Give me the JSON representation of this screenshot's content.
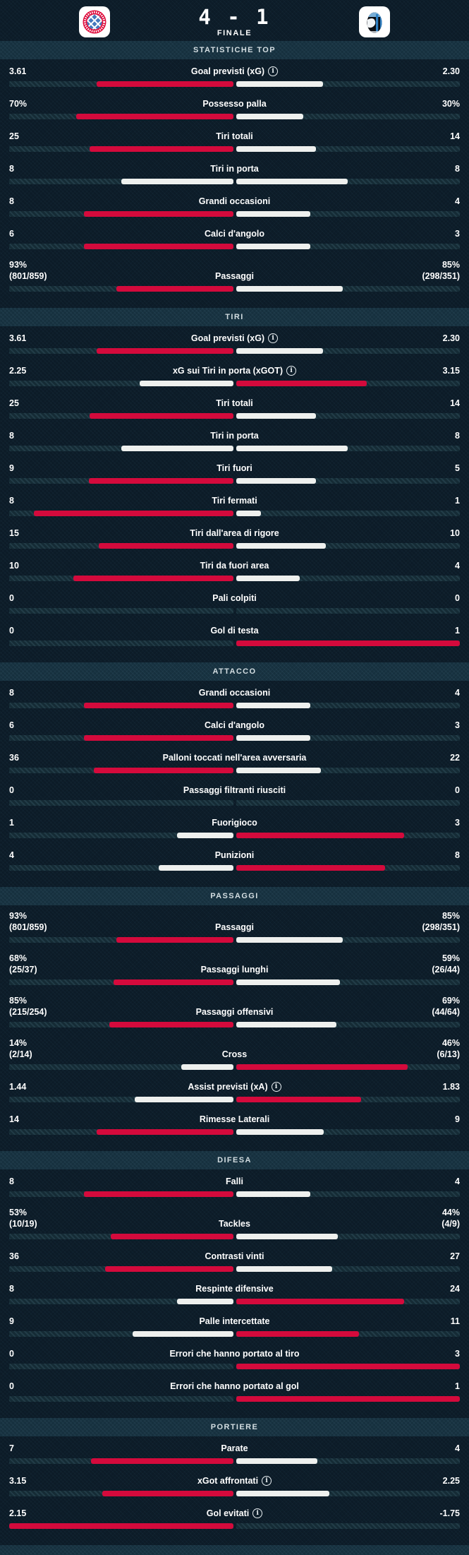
{
  "header": {
    "score": "4 - 1",
    "status": "FINALE",
    "home_logo": "bayern-munich-crest",
    "away_logo": "atalanta-crest"
  },
  "colors": {
    "background": "#0c1b27",
    "band": "#16303e",
    "track": "#152b35",
    "accent_red": "#d40a3c",
    "bar_neutral": "#eef0ee"
  },
  "icons": {
    "info": "info-icon"
  },
  "sections": [
    {
      "title": "STATISTICHE TOP",
      "rows": [
        {
          "label": "Goal previsti (xG)",
          "info": true,
          "left": "3.61",
          "right": "2.30",
          "bars": {
            "left_pct": 61.1,
            "left_color": "red",
            "right_pct": 38.9,
            "right_color": "white"
          }
        },
        {
          "label": "Possesso palla",
          "info": false,
          "left": "70%",
          "right": "30%",
          "bars": {
            "left_pct": 70,
            "left_color": "red",
            "right_pct": 30,
            "right_color": "white"
          }
        },
        {
          "label": "Tiri totali",
          "info": false,
          "left": "25",
          "right": "14",
          "bars": {
            "left_pct": 64.1,
            "left_color": "red",
            "right_pct": 35.9,
            "right_color": "white"
          }
        },
        {
          "label": "Tiri in porta",
          "info": false,
          "left": "8",
          "right": "8",
          "bars": {
            "left_pct": 50,
            "left_color": "white",
            "right_pct": 50,
            "right_color": "white"
          }
        },
        {
          "label": "Grandi occasioni",
          "info": false,
          "left": "8",
          "right": "4",
          "bars": {
            "left_pct": 66.7,
            "left_color": "red",
            "right_pct": 33.3,
            "right_color": "white"
          }
        },
        {
          "label": "Calci d'angolo",
          "info": false,
          "left": "6",
          "right": "3",
          "bars": {
            "left_pct": 66.7,
            "left_color": "red",
            "right_pct": 33.3,
            "right_color": "white"
          }
        },
        {
          "label": "Passaggi",
          "info": false,
          "left": "93%",
          "left_sub": "(801/859)",
          "right": "85%",
          "right_sub": "(298/351)",
          "bars": {
            "left_pct": 52.2,
            "left_color": "red",
            "right_pct": 47.8,
            "right_color": "white"
          }
        }
      ]
    },
    {
      "title": "TIRI",
      "rows": [
        {
          "label": "Goal previsti (xG)",
          "info": true,
          "left": "3.61",
          "right": "2.30",
          "bars": {
            "left_pct": 61.1,
            "left_color": "red",
            "right_pct": 38.9,
            "right_color": "white"
          }
        },
        {
          "label": "xG sui Tiri in porta (xGOT)",
          "info": true,
          "left": "2.25",
          "right": "3.15",
          "bars": {
            "left_pct": 41.7,
            "left_color": "white",
            "right_pct": 58.3,
            "right_color": "red"
          }
        },
        {
          "label": "Tiri totali",
          "info": false,
          "left": "25",
          "right": "14",
          "bars": {
            "left_pct": 64.1,
            "left_color": "red",
            "right_pct": 35.9,
            "right_color": "white"
          }
        },
        {
          "label": "Tiri in porta",
          "info": false,
          "left": "8",
          "right": "8",
          "bars": {
            "left_pct": 50,
            "left_color": "white",
            "right_pct": 50,
            "right_color": "white"
          }
        },
        {
          "label": "Tiri fuori",
          "info": false,
          "left": "9",
          "right": "5",
          "bars": {
            "left_pct": 64.3,
            "left_color": "red",
            "right_pct": 35.7,
            "right_color": "white"
          }
        },
        {
          "label": "Tiri fermati",
          "info": false,
          "left": "8",
          "right": "1",
          "bars": {
            "left_pct": 88.9,
            "left_color": "red",
            "right_pct": 11.1,
            "right_color": "white"
          }
        },
        {
          "label": "Tiri dall'area di rigore",
          "info": false,
          "left": "15",
          "right": "10",
          "bars": {
            "left_pct": 60,
            "left_color": "red",
            "right_pct": 40,
            "right_color": "white"
          }
        },
        {
          "label": "Tiri da fuori area",
          "info": false,
          "left": "10",
          "right": "4",
          "bars": {
            "left_pct": 71.4,
            "left_color": "red",
            "right_pct": 28.6,
            "right_color": "white"
          }
        },
        {
          "label": "Pali colpiti",
          "info": false,
          "left": "0",
          "right": "0",
          "bars": {
            "left_pct": 0,
            "left_color": null,
            "right_pct": 0,
            "right_color": null
          }
        },
        {
          "label": "Gol di testa",
          "info": false,
          "left": "0",
          "right": "1",
          "bars": {
            "left_pct": 0,
            "left_color": null,
            "right_pct": 100,
            "right_color": "red"
          }
        }
      ]
    },
    {
      "title": "ATTACCO",
      "rows": [
        {
          "label": "Grandi occasioni",
          "info": false,
          "left": "8",
          "right": "4",
          "bars": {
            "left_pct": 66.7,
            "left_color": "red",
            "right_pct": 33.3,
            "right_color": "white"
          }
        },
        {
          "label": "Calci d'angolo",
          "info": false,
          "left": "6",
          "right": "3",
          "bars": {
            "left_pct": 66.7,
            "left_color": "red",
            "right_pct": 33.3,
            "right_color": "white"
          }
        },
        {
          "label": "Palloni toccati nell'area avversaria",
          "info": false,
          "left": "36",
          "right": "22",
          "bars": {
            "left_pct": 62.1,
            "left_color": "red",
            "right_pct": 37.9,
            "right_color": "white"
          }
        },
        {
          "label": "Passaggi filtranti riusciti",
          "info": false,
          "left": "0",
          "right": "0",
          "bars": {
            "left_pct": 0,
            "left_color": null,
            "right_pct": 0,
            "right_color": null
          }
        },
        {
          "label": "Fuorigioco",
          "info": false,
          "left": "1",
          "right": "3",
          "bars": {
            "left_pct": 25,
            "left_color": "white",
            "right_pct": 75,
            "right_color": "red"
          }
        },
        {
          "label": "Punizioni",
          "info": false,
          "left": "4",
          "right": "8",
          "bars": {
            "left_pct": 33.3,
            "left_color": "white",
            "right_pct": 66.7,
            "right_color": "red"
          }
        }
      ]
    },
    {
      "title": "PASSAGGI",
      "rows": [
        {
          "label": "Passaggi",
          "info": false,
          "left": "93%",
          "left_sub": "(801/859)",
          "right": "85%",
          "right_sub": "(298/351)",
          "bars": {
            "left_pct": 52.2,
            "left_color": "red",
            "right_pct": 47.8,
            "right_color": "white"
          }
        },
        {
          "label": "Passaggi lunghi",
          "info": false,
          "left": "68%",
          "left_sub": "(25/37)",
          "right": "59%",
          "right_sub": "(26/44)",
          "bars": {
            "left_pct": 53.5,
            "left_color": "red",
            "right_pct": 46.5,
            "right_color": "white"
          }
        },
        {
          "label": "Passaggi offensivi",
          "info": false,
          "left": "85%",
          "left_sub": "(215/254)",
          "right": "69%",
          "right_sub": "(44/64)",
          "bars": {
            "left_pct": 55.2,
            "left_color": "red",
            "right_pct": 44.8,
            "right_color": "white"
          }
        },
        {
          "label": "Cross",
          "info": false,
          "left": "14%",
          "left_sub": "(2/14)",
          "right": "46%",
          "right_sub": "(6/13)",
          "bars": {
            "left_pct": 23.3,
            "left_color": "white",
            "right_pct": 76.7,
            "right_color": "red"
          }
        },
        {
          "label": "Assist previsti (xA)",
          "info": true,
          "left": "1.44",
          "right": "1.83",
          "bars": {
            "left_pct": 44,
            "left_color": "white",
            "right_pct": 56,
            "right_color": "red"
          }
        },
        {
          "label": "Rimesse Laterali",
          "info": false,
          "left": "14",
          "right": "9",
          "bars": {
            "left_pct": 60.9,
            "left_color": "red",
            "right_pct": 39.1,
            "right_color": "white"
          }
        }
      ]
    },
    {
      "title": "DIFESA",
      "rows": [
        {
          "label": "Falli",
          "info": false,
          "left": "8",
          "right": "4",
          "bars": {
            "left_pct": 66.7,
            "left_color": "red",
            "right_pct": 33.3,
            "right_color": "white"
          }
        },
        {
          "label": "Tackles",
          "info": false,
          "left": "53%",
          "left_sub": "(10/19)",
          "right": "44%",
          "right_sub": "(4/9)",
          "bars": {
            "left_pct": 54.6,
            "left_color": "red",
            "right_pct": 45.4,
            "right_color": "white"
          }
        },
        {
          "label": "Contrasti vinti",
          "info": false,
          "left": "36",
          "right": "27",
          "bars": {
            "left_pct": 57.1,
            "left_color": "red",
            "right_pct": 42.9,
            "right_color": "white"
          }
        },
        {
          "label": "Respinte difensive",
          "info": false,
          "left": "8",
          "right": "24",
          "bars": {
            "left_pct": 25,
            "left_color": "white",
            "right_pct": 75,
            "right_color": "red"
          }
        },
        {
          "label": "Palle intercettate",
          "info": false,
          "left": "9",
          "right": "11",
          "bars": {
            "left_pct": 45,
            "left_color": "white",
            "right_pct": 55,
            "right_color": "red"
          }
        },
        {
          "label": "Errori che hanno portato al tiro",
          "info": false,
          "left": "0",
          "right": "3",
          "bars": {
            "left_pct": 0,
            "left_color": null,
            "right_pct": 100,
            "right_color": "red"
          }
        },
        {
          "label": "Errori che hanno portato al gol",
          "info": false,
          "left": "0",
          "right": "1",
          "bars": {
            "left_pct": 0,
            "left_color": null,
            "right_pct": 100,
            "right_color": "red"
          }
        }
      ]
    },
    {
      "title": "PORTIERE",
      "rows": [
        {
          "label": "Parate",
          "info": false,
          "left": "7",
          "right": "4",
          "bars": {
            "left_pct": 63.6,
            "left_color": "red",
            "right_pct": 36.4,
            "right_color": "white"
          }
        },
        {
          "label": "xGot affrontati",
          "info": true,
          "left": "3.15",
          "right": "2.25",
          "bars": {
            "left_pct": 58.3,
            "left_color": "red",
            "right_pct": 41.7,
            "right_color": "white"
          }
        },
        {
          "label": "Gol evitati",
          "info": true,
          "left": "2.15",
          "right": "-1.75",
          "bars": {
            "left_pct": 100,
            "left_color": "red",
            "right_pct": 0,
            "right_color": null
          }
        }
      ]
    }
  ]
}
